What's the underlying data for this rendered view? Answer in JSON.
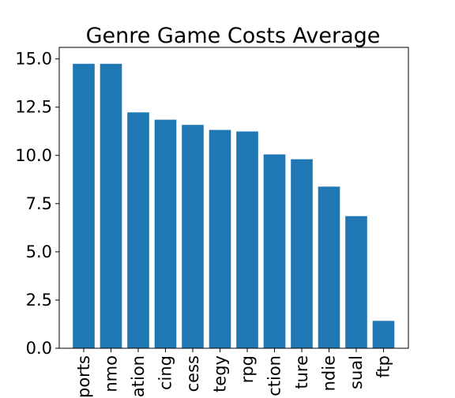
{
  "chart_data": {
    "type": "bar",
    "title": "Genre Game Costs Average",
    "xlabel": "",
    "ylabel": "",
    "ylim": [
      0,
      15.6
    ],
    "yticks": [
      "0.0",
      "2.5",
      "5.0",
      "7.5",
      "10.0",
      "12.5",
      "15.0"
    ],
    "ytick_values": [
      0,
      2.5,
      5,
      7.5,
      10,
      12.5,
      15
    ],
    "categories": [
      "ports",
      "nmo",
      "ation",
      "cing",
      "cess",
      "tegy",
      "rpg",
      "ction",
      "ture",
      "ndie",
      "sual",
      "ftp"
    ],
    "values": [
      14.75,
      14.75,
      12.23,
      11.85,
      11.58,
      11.32,
      11.24,
      10.05,
      9.8,
      8.38,
      6.85,
      1.42
    ],
    "bar_color": "#1f77b4",
    "grid": false
  }
}
